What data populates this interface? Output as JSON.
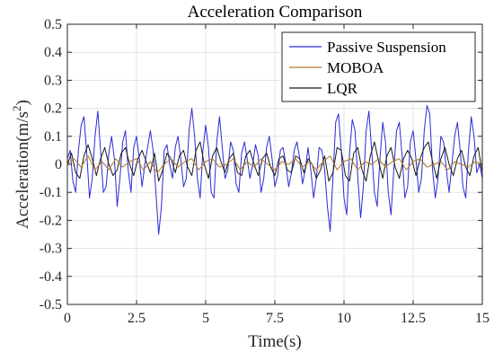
{
  "chart_data": {
    "type": "line",
    "title": "Acceleration Comparison",
    "xlabel": "Time(s)",
    "ylabel_main": "Acceleration(m/s",
    "ylabel_sup": "2",
    "ylabel_tail": ")",
    "xlim": [
      0,
      15
    ],
    "ylim": [
      -0.5,
      0.5
    ],
    "xticks": [
      0,
      2.5,
      5,
      7.5,
      10,
      12.5,
      15
    ],
    "xtick_labels": [
      "0",
      "2.5",
      "5",
      "7.5",
      "10",
      "12.5",
      "15"
    ],
    "yticks": [
      -0.5,
      -0.4,
      -0.3,
      -0.2,
      -0.1,
      0,
      0.1,
      0.2,
      0.3,
      0.4,
      0.5
    ],
    "ytick_labels": [
      "-0.5",
      "-0.4",
      "-0.3",
      "-0.2",
      "-0.1",
      "0",
      "0.1",
      "0.2",
      "0.3",
      "0.4",
      "0.5"
    ],
    "grid": true,
    "legend_position": "top-right",
    "series": [
      {
        "name": "Passive Suspension",
        "color": "#2b2bd6",
        "x": [
          0,
          0.1,
          0.2,
          0.3,
          0.4,
          0.5,
          0.6,
          0.7,
          0.8,
          0.9,
          1.0,
          1.1,
          1.2,
          1.3,
          1.4,
          1.5,
          1.6,
          1.7,
          1.8,
          1.9,
          2.0,
          2.1,
          2.2,
          2.3,
          2.4,
          2.5,
          2.6,
          2.7,
          2.8,
          2.9,
          3.0,
          3.1,
          3.2,
          3.3,
          3.4,
          3.5,
          3.6,
          3.7,
          3.8,
          3.9,
          4.0,
          4.1,
          4.2,
          4.3,
          4.4,
          4.5,
          4.6,
          4.7,
          4.8,
          4.9,
          5.0,
          5.1,
          5.2,
          5.3,
          5.4,
          5.5,
          5.6,
          5.7,
          5.8,
          5.9,
          6.0,
          6.1,
          6.2,
          6.3,
          6.4,
          6.5,
          6.6,
          6.7,
          6.8,
          6.9,
          7.0,
          7.1,
          7.2,
          7.3,
          7.4,
          7.5,
          7.6,
          7.7,
          7.8,
          7.9,
          8.0,
          8.1,
          8.2,
          8.3,
          8.4,
          8.5,
          8.6,
          8.7,
          8.8,
          8.9,
          9.0,
          9.1,
          9.2,
          9.3,
          9.4,
          9.5,
          9.6,
          9.7,
          9.8,
          9.9,
          10.0,
          10.1,
          10.2,
          10.3,
          10.4,
          10.5,
          10.6,
          10.7,
          10.8,
          10.9,
          11.0,
          11.1,
          11.2,
          11.3,
          11.4,
          11.5,
          11.6,
          11.7,
          11.8,
          11.9,
          12.0,
          12.1,
          12.2,
          12.3,
          12.4,
          12.5,
          12.6,
          12.7,
          12.8,
          12.9,
          13.0,
          13.1,
          13.2,
          13.3,
          13.4,
          13.5,
          13.6,
          13.7,
          13.8,
          13.9,
          14.0,
          14.1,
          14.2,
          14.3,
          14.4,
          14.5,
          14.6,
          14.7,
          14.8,
          14.9,
          15.0
        ],
        "y": [
          0.02,
          0.05,
          -0.06,
          -0.1,
          0.05,
          0.14,
          0.17,
          0.04,
          -0.12,
          -0.05,
          0.1,
          0.19,
          0.05,
          -0.1,
          -0.08,
          0.04,
          0.1,
          0.02,
          -0.15,
          -0.05,
          0.08,
          0.12,
          -0.02,
          -0.1,
          0.06,
          0.1,
          0.02,
          -0.08,
          0.0,
          0.06,
          0.12,
          0.05,
          -0.1,
          -0.25,
          -0.15,
          0.05,
          0.07,
          0.0,
          -0.05,
          0.06,
          0.1,
          0.02,
          -0.08,
          -0.05,
          0.12,
          0.2,
          0.1,
          -0.05,
          -0.12,
          0.05,
          0.14,
          0.06,
          -0.1,
          -0.12,
          0.08,
          0.17,
          0.06,
          -0.05,
          -0.02,
          0.08,
          0.05,
          -0.07,
          -0.1,
          0.04,
          0.08,
          0.02,
          -0.05,
          0.0,
          0.07,
          0.03,
          -0.1,
          -0.05,
          0.06,
          0.1,
          0.02,
          -0.08,
          -0.04,
          0.05,
          0.06,
          0.0,
          -0.08,
          -0.03,
          0.05,
          0.08,
          0.02,
          -0.07,
          -0.02,
          0.06,
          -0.02,
          -0.12,
          -0.05,
          0.06,
          0.05,
          -0.02,
          -0.15,
          -0.24,
          -0.05,
          0.15,
          0.18,
          0.05,
          -0.12,
          -0.18,
          0.04,
          0.16,
          0.12,
          -0.05,
          -0.19,
          -0.08,
          0.12,
          0.19,
          0.05,
          -0.1,
          -0.15,
          0.02,
          0.15,
          0.08,
          -0.1,
          -0.18,
          -0.02,
          0.12,
          0.15,
          0.03,
          -0.12,
          -0.08,
          0.08,
          0.12,
          0.02,
          -0.1,
          -0.05,
          0.12,
          0.21,
          0.18,
          -0.02,
          -0.12,
          -0.05,
          0.1,
          0.08,
          -0.02,
          -0.1,
          0.0,
          0.1,
          0.15,
          0.05,
          -0.08,
          -0.12,
          0.05,
          0.17,
          0.1,
          -0.03,
          0.0,
          -0.05
        ]
      },
      {
        "name": "MOBOA",
        "color": "#b07a2a",
        "x": [
          0,
          0.25,
          0.5,
          0.75,
          1.0,
          1.25,
          1.5,
          1.75,
          2.0,
          2.25,
          2.5,
          2.75,
          3.0,
          3.25,
          3.5,
          3.75,
          4.0,
          4.25,
          4.5,
          4.75,
          5.0,
          5.25,
          5.5,
          5.75,
          6.0,
          6.25,
          6.5,
          6.75,
          7.0,
          7.25,
          7.5,
          7.75,
          8.0,
          8.25,
          8.5,
          8.75,
          9.0,
          9.25,
          9.5,
          9.75,
          10.0,
          10.25,
          10.5,
          10.75,
          11.0,
          11.25,
          11.5,
          11.75,
          12.0,
          12.25,
          12.5,
          12.75,
          13.0,
          13.25,
          13.5,
          13.75,
          14.0,
          14.25,
          14.5,
          14.75,
          15.0
        ],
        "y": [
          0.0,
          0.02,
          -0.01,
          0.03,
          -0.02,
          0.01,
          -0.02,
          0.02,
          -0.01,
          0.01,
          0.02,
          -0.02,
          0.01,
          -0.03,
          0.0,
          0.02,
          -0.01,
          0.01,
          0.02,
          -0.02,
          0.01,
          0.02,
          -0.01,
          0.0,
          0.02,
          -0.02,
          0.01,
          -0.01,
          0.02,
          0.0,
          -0.02,
          0.01,
          0.0,
          0.02,
          -0.01,
          0.01,
          -0.02,
          0.01,
          0.03,
          -0.02,
          0.01,
          0.02,
          -0.02,
          0.01,
          0.0,
          0.02,
          -0.01,
          0.01,
          0.02,
          -0.02,
          0.01,
          0.02,
          -0.01,
          0.0,
          0.01,
          -0.02,
          0.01,
          0.0,
          -0.01,
          0.01,
          0.0
        ]
      },
      {
        "name": "LQR",
        "color": "#1a1a1a",
        "x": [
          0,
          0.15,
          0.3,
          0.45,
          0.6,
          0.75,
          0.9,
          1.05,
          1.2,
          1.35,
          1.5,
          1.65,
          1.8,
          1.95,
          2.1,
          2.25,
          2.4,
          2.55,
          2.7,
          2.85,
          3.0,
          3.15,
          3.3,
          3.45,
          3.6,
          3.75,
          3.9,
          4.05,
          4.2,
          4.35,
          4.5,
          4.65,
          4.8,
          4.95,
          5.1,
          5.25,
          5.4,
          5.55,
          5.7,
          5.85,
          6.0,
          6.15,
          6.3,
          6.45,
          6.6,
          6.75,
          6.9,
          7.05,
          7.2,
          7.35,
          7.5,
          7.65,
          7.8,
          7.95,
          8.1,
          8.25,
          8.4,
          8.55,
          8.7,
          8.85,
          9.0,
          9.15,
          9.3,
          9.45,
          9.6,
          9.75,
          9.9,
          10.05,
          10.2,
          10.35,
          10.5,
          10.65,
          10.8,
          10.95,
          11.1,
          11.25,
          11.4,
          11.55,
          11.7,
          11.85,
          12.0,
          12.15,
          12.3,
          12.45,
          12.6,
          12.75,
          12.9,
          13.05,
          13.2,
          13.35,
          13.5,
          13.65,
          13.8,
          13.95,
          14.1,
          14.25,
          14.4,
          14.55,
          14.7,
          14.85,
          15.0
        ],
        "y": [
          0.0,
          0.04,
          -0.03,
          -0.05,
          0.03,
          0.07,
          0.02,
          -0.04,
          0.02,
          0.06,
          0.0,
          -0.04,
          -0.02,
          0.04,
          0.06,
          0.0,
          -0.04,
          0.02,
          0.05,
          0.01,
          -0.03,
          0.04,
          -0.06,
          -0.02,
          0.04,
          0.02,
          -0.03,
          0.03,
          0.05,
          -0.01,
          -0.04,
          0.05,
          0.08,
          0.0,
          -0.05,
          0.03,
          0.06,
          0.01,
          -0.03,
          0.02,
          0.04,
          -0.03,
          -0.04,
          0.03,
          0.05,
          0.0,
          -0.04,
          0.02,
          0.04,
          -0.01,
          -0.04,
          0.02,
          0.03,
          -0.02,
          -0.03,
          0.03,
          0.02,
          -0.03,
          0.02,
          0.0,
          -0.05,
          -0.02,
          0.03,
          -0.06,
          -0.03,
          0.06,
          0.05,
          -0.04,
          -0.06,
          0.04,
          0.06,
          -0.02,
          -0.06,
          0.03,
          0.08,
          0.01,
          -0.05,
          0.03,
          0.06,
          -0.01,
          -0.05,
          0.02,
          0.05,
          0.02,
          -0.04,
          0.02,
          0.06,
          0.08,
          0.01,
          -0.05,
          0.02,
          0.06,
          0.0,
          -0.04,
          0.02,
          0.05,
          -0.01,
          -0.04,
          0.03,
          0.06,
          -0.03
        ]
      }
    ]
  }
}
